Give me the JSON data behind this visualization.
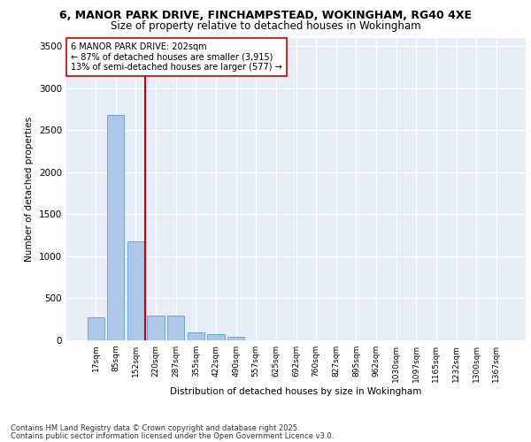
{
  "title_line1": "6, MANOR PARK DRIVE, FINCHAMPSTEAD, WOKINGHAM, RG40 4XE",
  "title_line2": "Size of property relative to detached houses in Wokingham",
  "xlabel": "Distribution of detached houses by size in Wokingham",
  "ylabel": "Number of detached properties",
  "categories": [
    "17sqm",
    "85sqm",
    "152sqm",
    "220sqm",
    "287sqm",
    "355sqm",
    "422sqm",
    "490sqm",
    "557sqm",
    "625sqm",
    "692sqm",
    "760sqm",
    "827sqm",
    "895sqm",
    "962sqm",
    "1030sqm",
    "1097sqm",
    "1165sqm",
    "1232sqm",
    "1300sqm",
    "1367sqm"
  ],
  "values": [
    270,
    2680,
    1180,
    295,
    290,
    95,
    75,
    45,
    0,
    0,
    0,
    0,
    0,
    0,
    0,
    0,
    0,
    0,
    0,
    0,
    0
  ],
  "bar_color": "#aec6e8",
  "bar_edge_color": "#5b9bd5",
  "vline_color": "#cc0000",
  "annotation_text": "6 MANOR PARK DRIVE: 202sqm\n← 87% of detached houses are smaller (3,915)\n13% of semi-detached houses are larger (577) →",
  "annotation_box_color": "#ffffff",
  "annotation_box_edge": "#cc0000",
  "ylim": [
    0,
    3600
  ],
  "yticks": [
    0,
    500,
    1000,
    1500,
    2000,
    2500,
    3000,
    3500
  ],
  "background_color": "#e8eef7",
  "grid_color": "#ffffff",
  "footer_line1": "Contains HM Land Registry data © Crown copyright and database right 2025.",
  "footer_line2": "Contains public sector information licensed under the Open Government Licence v3.0."
}
